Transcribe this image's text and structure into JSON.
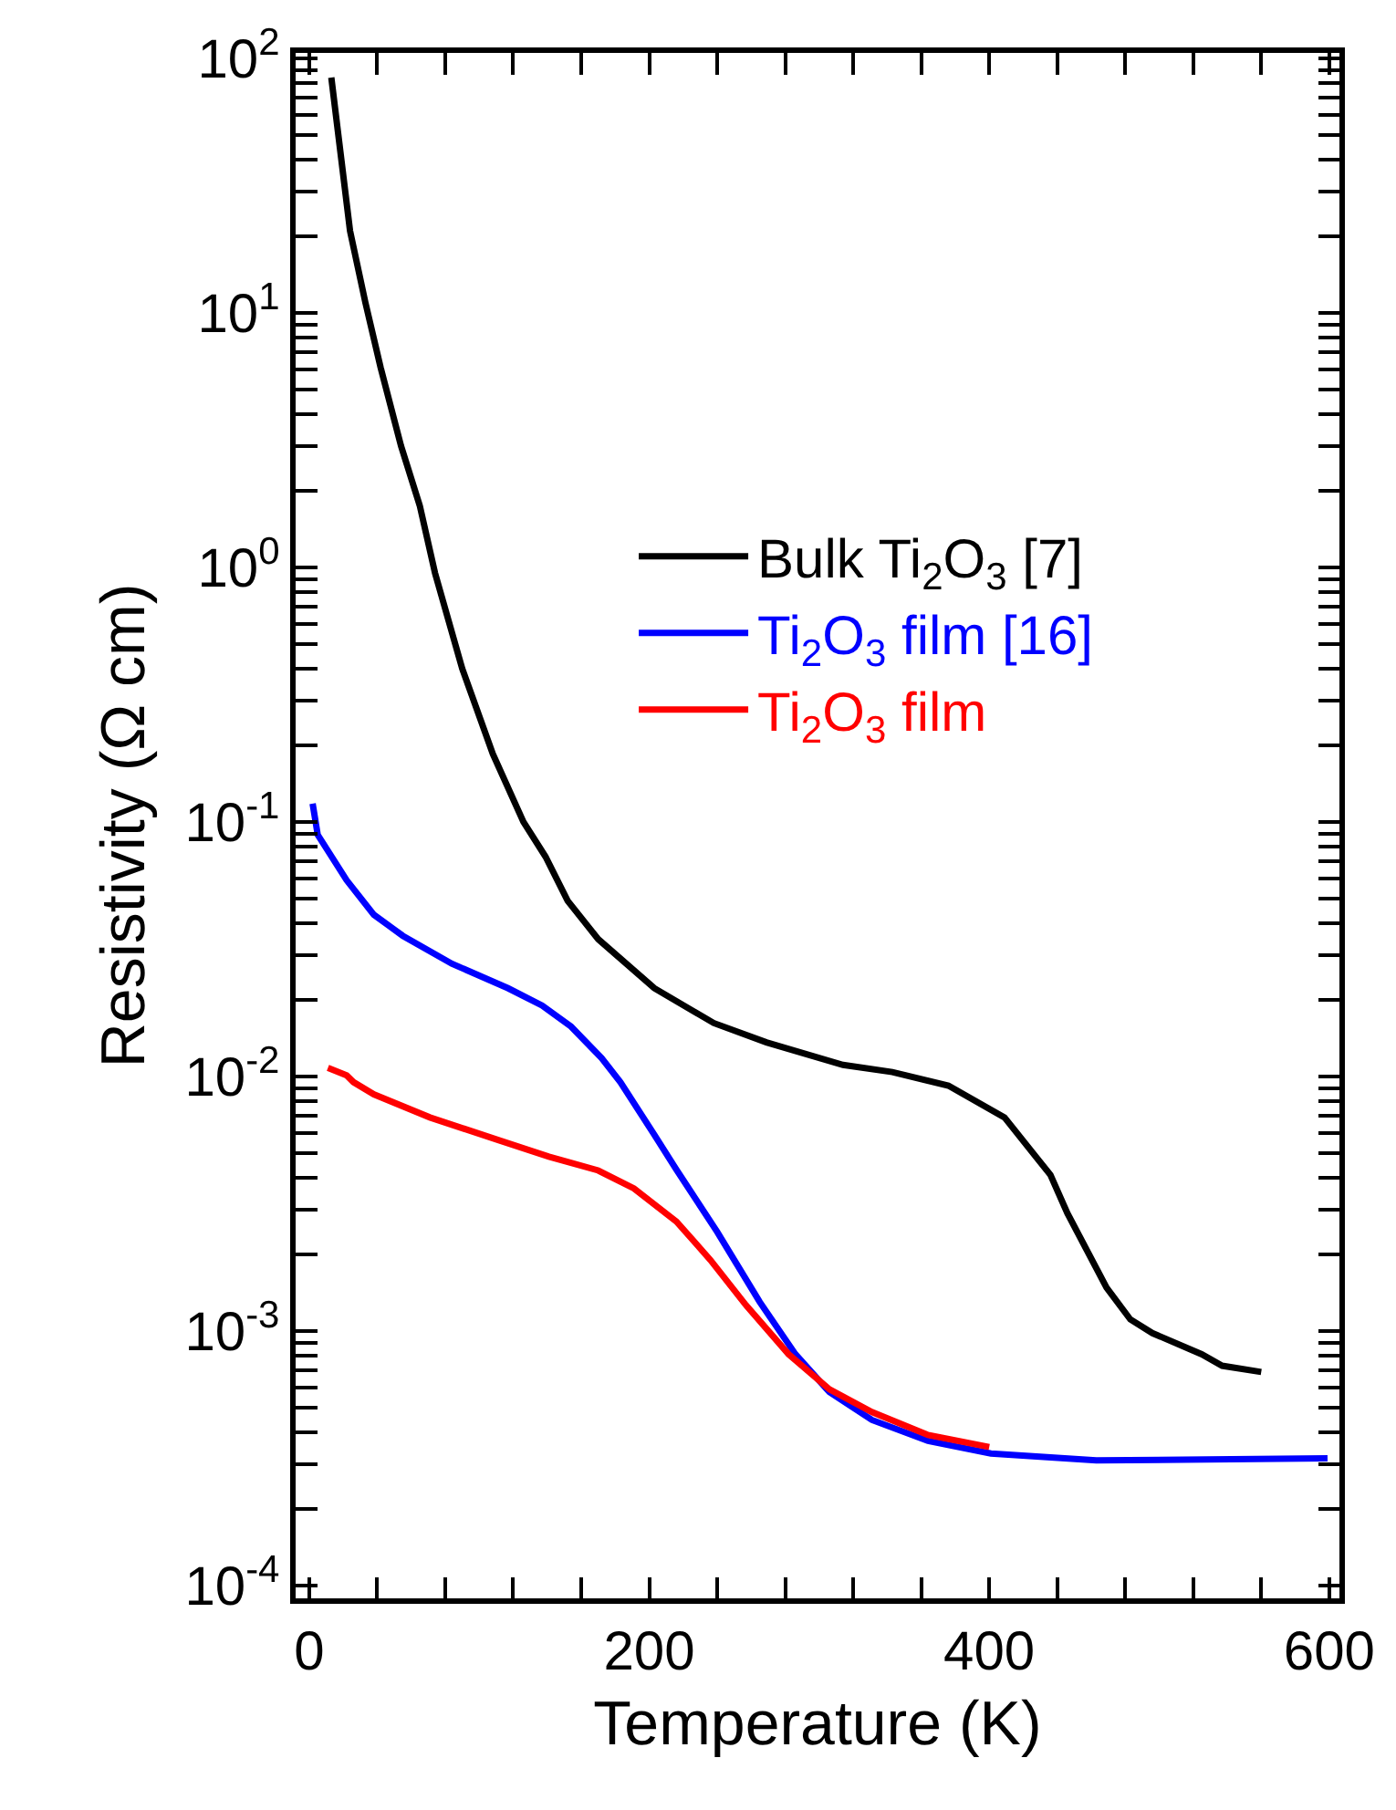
{
  "chart_data": {
    "type": "line",
    "xlabel": "Temperature (K)",
    "ylabel": "Resistivity (Ω cm)",
    "log": "y",
    "grid": false,
    "legend": "top right",
    "marker": "none",
    "line_style": "solid",
    "xlim": [
      -8,
      606
    ],
    "ylim": [
      8.9e-05,
      105
    ],
    "xticks": [
      0,
      200,
      400,
      600,
      {
        "value": 40,
        "label": null
      },
      {
        "value": 80,
        "label": null
      },
      {
        "value": 120,
        "label": null
      },
      {
        "value": 160,
        "label": null
      },
      {
        "value": 240,
        "label": null
      },
      {
        "value": 280,
        "label": null
      },
      {
        "value": 320,
        "label": null
      },
      {
        "value": 360,
        "label": null
      },
      {
        "value": 440,
        "label": null
      },
      {
        "value": 480,
        "label": null
      },
      {
        "value": 520,
        "label": null
      },
      {
        "value": 560,
        "label": null
      }
    ],
    "yticks": [
      {
        "value": 0.0001,
        "label": "10$^{-4}$"
      },
      {
        "value": 0.001,
        "label": "10$^{-3}$"
      },
      {
        "value": 0.01,
        "label": "10$^{-2}$"
      },
      {
        "value": 0.1,
        "label": "10$^{-1}$"
      },
      {
        "value": 1,
        "label": "10$^{0}$"
      },
      {
        "value": 10,
        "label": "10$^{1}$"
      },
      {
        "value": 100,
        "label": "10$^{2}$"
      },
      {
        "value": 0.0002,
        "label": null
      },
      {
        "value": 0.0003,
        "label": null
      },
      {
        "value": 0.0004,
        "label": null
      },
      {
        "value": 0.0005,
        "label": null
      },
      {
        "value": 0.0006,
        "label": null
      },
      {
        "value": 0.0007,
        "label": null
      },
      {
        "value": 0.0008,
        "label": null
      },
      {
        "value": 0.0009,
        "label": null
      },
      {
        "value": 0.002,
        "label": null
      },
      {
        "value": 0.003,
        "label": null
      },
      {
        "value": 0.004,
        "label": null
      },
      {
        "value": 0.005,
        "label": null
      },
      {
        "value": 0.006,
        "label": null
      },
      {
        "value": 0.007,
        "label": null
      },
      {
        "value": 0.008,
        "label": null
      },
      {
        "value": 0.009,
        "label": null
      },
      {
        "value": 0.02,
        "label": null
      },
      {
        "value": 0.03,
        "label": null
      },
      {
        "value": 0.04,
        "label": null
      },
      {
        "value": 0.05,
        "label": null
      },
      {
        "value": 0.06,
        "label": null
      },
      {
        "value": 0.07,
        "label": null
      },
      {
        "value": 0.08,
        "label": null
      },
      {
        "value": 0.09,
        "label": null
      },
      {
        "value": 0.2,
        "label": null
      },
      {
        "value": 0.3,
        "label": null
      },
      {
        "value": 0.4,
        "label": null
      },
      {
        "value": 0.5,
        "label": null
      },
      {
        "value": 0.6,
        "label": null
      },
      {
        "value": 0.7,
        "label": null
      },
      {
        "value": 0.8,
        "label": null
      },
      {
        "value": 0.9,
        "label": null
      },
      {
        "value": 2,
        "label": null
      },
      {
        "value": 3,
        "label": null
      },
      {
        "value": 4,
        "label": null
      },
      {
        "value": 5,
        "label": null
      },
      {
        "value": 6,
        "label": null
      },
      {
        "value": 7,
        "label": null
      },
      {
        "value": 8,
        "label": null
      },
      {
        "value": 9,
        "label": null
      },
      {
        "value": 20,
        "label": null
      },
      {
        "value": 30,
        "label": null
      },
      {
        "value": 40,
        "label": null
      },
      {
        "value": 50,
        "label": null
      },
      {
        "value": 60,
        "label": null
      },
      {
        "value": 70,
        "label": null
      },
      {
        "value": 80,
        "label": null
      },
      {
        "value": 90,
        "label": null
      }
    ],
    "series": [
      {
        "name": "Bulk Ti$_{2}$O$_{3}$ [7]",
        "color": "#000000",
        "x": [
          13,
          24,
          33,
          42,
          54,
          65,
          74,
          90,
          108,
          126,
          139,
          152,
          170,
          203,
          238,
          269,
          314,
          343,
          376,
          409,
          436,
          446,
          469,
          483,
          496,
          525,
          537,
          560
        ],
        "values": [
          84,
          21,
          11,
          6.1,
          3.0,
          1.75,
          0.95,
          0.4,
          0.185,
          0.1,
          0.073,
          0.049,
          0.0346,
          0.0222,
          0.0162,
          0.0136,
          0.0111,
          0.0104,
          0.0092,
          0.0069,
          0.0041,
          0.0029,
          0.00148,
          0.00111,
          0.00098,
          0.00081,
          0.00073,
          0.00069
        ]
      },
      {
        "name": "Ti$_{2}$O$_{3}$ film [16]",
        "color": "#0000ff",
        "x": [
          2,
          5,
          22,
          38,
          55,
          84,
          117,
          137,
          154,
          172,
          183,
          203,
          216,
          240,
          265,
          286,
          306,
          331,
          364,
          401,
          463,
          599
        ],
        "values": [
          0.118,
          0.089,
          0.059,
          0.0432,
          0.0357,
          0.0277,
          0.0222,
          0.019,
          0.0157,
          0.0118,
          0.0095,
          0.0059,
          0.0043,
          0.00245,
          0.0013,
          0.00081,
          0.000575,
          0.000447,
          0.00037,
          0.00033,
          0.00031,
          0.000316
        ]
      },
      {
        "name": "Ti$_{2}$O$_{3}$ film",
        "color": "#ff0000",
        "x": [
          11,
          22,
          26,
          38,
          71,
          112,
          141,
          170,
          191,
          216,
          236,
          257,
          282,
          306,
          331,
          364,
          400
        ],
        "values": [
          0.0108,
          0.0101,
          0.0095,
          0.0085,
          0.0069,
          0.0056,
          0.00484,
          0.00427,
          0.00363,
          0.00269,
          0.0019,
          0.00126,
          0.00081,
          0.00059,
          0.00048,
          0.00039,
          0.00035
        ]
      }
    ]
  }
}
